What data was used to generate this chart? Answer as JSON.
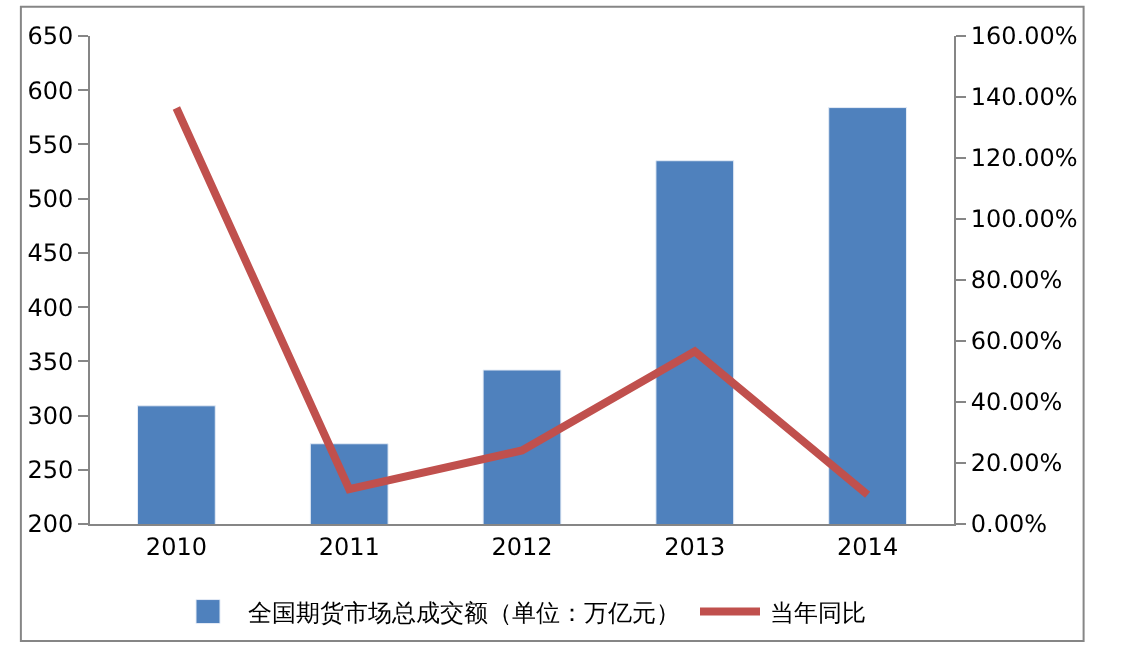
{
  "chart_data": {
    "type": "bar",
    "categories": [
      "2010",
      "2011",
      "2012",
      "2013",
      "2014"
    ],
    "series": [
      {
        "name": "全国期货市场总成交额（单位：万亿元）",
        "color": "#4f81bd",
        "values": [
          309,
          274,
          342,
          535,
          584
        ]
      },
      {
        "name": "当年同比",
        "type": "line",
        "axis": "y2",
        "color": "#c0504d",
        "values": [
          136.4,
          11.4,
          24.1,
          56.6,
          9.6
        ]
      }
    ],
    "ylim": [
      200,
      650
    ],
    "yticks": [
      200,
      250,
      300,
      350,
      400,
      450,
      500,
      550,
      600,
      650
    ],
    "y2lim": [
      0,
      160
    ],
    "y2ticks": [
      {
        "value": 0,
        "label": "0.00%"
      },
      {
        "value": 20,
        "label": "20.00%"
      },
      {
        "value": 40,
        "label": "40.00%"
      },
      {
        "value": 60,
        "label": "60.00%"
      },
      {
        "value": 80,
        "label": "80.00%"
      },
      {
        "value": 100,
        "label": "100.00%"
      },
      {
        "value": 120,
        "label": "120.00%"
      },
      {
        "value": 140,
        "label": "140.00%"
      },
      {
        "value": 160,
        "label": "160.00%"
      }
    ],
    "legend": "bottom",
    "marker": "none",
    "line_style": "solid"
  }
}
